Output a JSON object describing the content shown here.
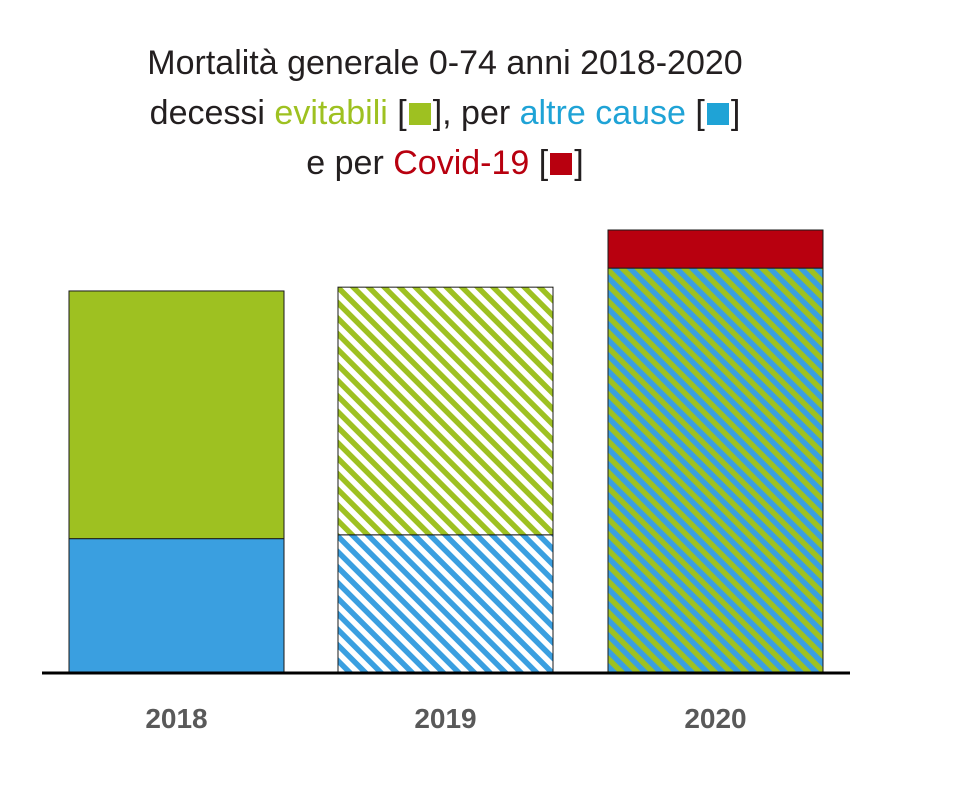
{
  "colors": {
    "evitabili": "#9ec121",
    "altre_cause": "#3a9fe0",
    "covid": "#b8000f",
    "text": "#231f20",
    "axis": "#000000",
    "tick": "#595959"
  },
  "title": {
    "line1": "Mortalità generale 0-74 anni 2018-2020",
    "line2_pre": "decessi ",
    "line2_evitabili": "evitabili",
    "line2_mid": " [",
    "line2_close1": "], per ",
    "line2_altre": "altre cause",
    "line2_open2": " [",
    "line2_close2": "]",
    "line3_pre": "e per ",
    "line3_covid": "Covid-19",
    "line3_open": " [",
    "line3_close": "]"
  },
  "chart_data": {
    "type": "bar",
    "stacked": true,
    "categories": [
      "2018",
      "2019",
      "2020"
    ],
    "series": [
      {
        "name": "altre cause",
        "values": [
          35,
          36,
          0
        ],
        "fills": [
          "solid",
          "hatch",
          "hatch"
        ]
      },
      {
        "name": "evitabili",
        "values": [
          65,
          65,
          106
        ],
        "fills": [
          "solid",
          "hatch",
          "hatch"
        ]
      },
      {
        "name": "Covid-19",
        "values": [
          0,
          0,
          10
        ],
        "fills": [
          "solid",
          "solid",
          "solid"
        ]
      }
    ],
    "ylim": [
      0,
      116
    ],
    "grid": false,
    "legend": "inline-in-title"
  }
}
